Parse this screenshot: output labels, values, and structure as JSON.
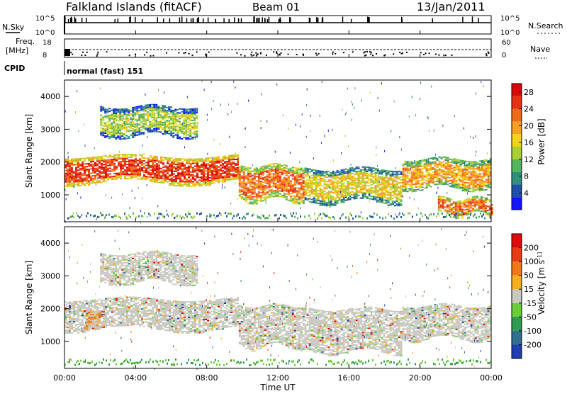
{
  "header": {
    "station": "Falkland Islands (fitACF)",
    "beam": "Beam 01",
    "date": "13/Jan/2011"
  },
  "status_panels": {
    "nsky_label": "N.Sky",
    "nsearch_label": "N.Search",
    "freq_label_1": "Freq.",
    "freq_label_2": "[MHz]",
    "nave_label": "Nave",
    "cpid_label": "CPID",
    "cpid_value": "normal (fast) 151",
    "nsky_ticks": [
      "10^5",
      "10^0"
    ],
    "nsearch_ticks": [
      "10^5",
      "10^0"
    ],
    "freq_ticks": [
      "18",
      "8"
    ],
    "nave_ticks": [
      "60",
      "0"
    ]
  },
  "chart_data": [
    {
      "type": "heatmap",
      "panel": "power",
      "xlabel": "Time UT",
      "ylabel": "Slant Range [km]",
      "x_ticks": [
        "00:00",
        "04:00",
        "08:00",
        "12:00",
        "16:00",
        "20:00",
        "00:00"
      ],
      "y_ticks": [
        "1000",
        "2000",
        "3000",
        "4000"
      ],
      "xlim_hours": [
        0,
        24
      ],
      "ylim_km": [
        180,
        4500
      ],
      "colorbar": {
        "label": "Power [dB]",
        "ticks": [
          "4",
          "8",
          "12",
          "16",
          "20",
          "24",
          "28"
        ],
        "range": [
          0,
          30
        ],
        "colors": [
          "#1515ff",
          "#1f4fa8",
          "#2f8f7a",
          "#55b35a",
          "#a8cf35",
          "#f2d21b",
          "#f5a020",
          "#f06a18",
          "#e83214",
          "#d80a0a"
        ]
      },
      "bands": [
        {
          "t0": 0.0,
          "t1": 9.8,
          "r0": 1380,
          "r1": 2180,
          "level": 8
        },
        {
          "t0": 9.8,
          "t1": 13.5,
          "r0": 850,
          "r1": 1900,
          "level": 7
        },
        {
          "t0": 13.5,
          "t1": 19.0,
          "r0": 800,
          "r1": 1800,
          "level": 5
        },
        {
          "t0": 19.0,
          "t1": 24.0,
          "r0": 1200,
          "r1": 2100,
          "level": 6
        },
        {
          "t0": 2.0,
          "t1": 7.5,
          "r0": 2800,
          "r1": 3700,
          "level": 4
        },
        {
          "t0": 21.0,
          "t1": 24.0,
          "r0": 400,
          "r1": 900,
          "level": 7
        }
      ]
    },
    {
      "type": "heatmap",
      "panel": "velocity",
      "xlabel": "Time UT",
      "ylabel": "Slant Range [km]",
      "x_ticks": [
        "00:00",
        "04:00",
        "08:00",
        "12:00",
        "16:00",
        "20:00",
        "00:00"
      ],
      "y_ticks": [
        "1000",
        "2000",
        "3000",
        "4000"
      ],
      "xlim_hours": [
        0,
        24
      ],
      "ylim_km": [
        180,
        4500
      ],
      "colorbar": {
        "label": "Velocity [m s^-1]",
        "ticks": [
          "200",
          "100",
          "50",
          "15",
          "-15",
          "-50",
          "-100",
          "-200"
        ],
        "colors": [
          "#1f3fb0",
          "#2f6f90",
          "#2f9a50",
          "#6ccd3a",
          "#c8c8c0",
          "#f2b020",
          "#f07818",
          "#e83a14",
          "#e00a0a"
        ]
      },
      "bands": [
        {
          "t0": 0.0,
          "t1": 9.8,
          "r0": 1380,
          "r1": 2300,
          "level": 4
        },
        {
          "t0": 9.8,
          "t1": 13.5,
          "r0": 850,
          "r1": 2100,
          "level": 4
        },
        {
          "t0": 13.5,
          "t1": 19.0,
          "r0": 700,
          "r1": 2000,
          "level": 4
        },
        {
          "t0": 19.0,
          "t1": 24.0,
          "r0": 1100,
          "r1": 2100,
          "level": 4
        },
        {
          "t0": 2.0,
          "t1": 7.5,
          "r0": 2800,
          "r1": 3700,
          "level": 4
        },
        {
          "t0": 1.2,
          "t1": 2.0,
          "r0": 1500,
          "r1": 1900,
          "level": 5
        }
      ]
    }
  ]
}
